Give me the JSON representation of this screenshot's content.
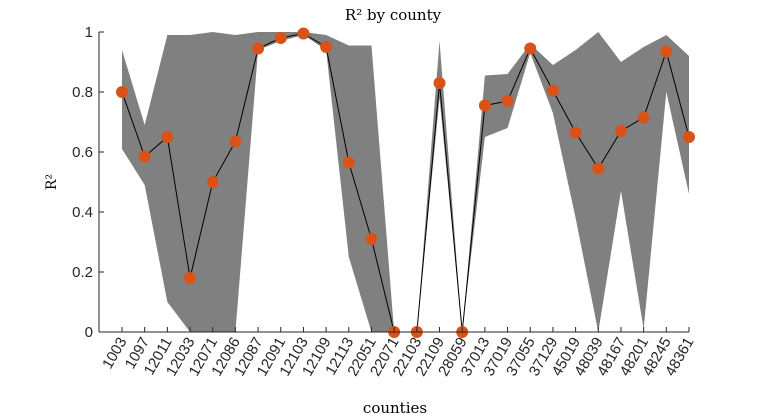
{
  "chart_data": {
    "type": "line",
    "title": "R² by county",
    "xlabel": "counties",
    "ylabel": "R²",
    "ylim": [
      0,
      1
    ],
    "yticks": [
      0,
      0.2,
      0.4,
      0.6,
      0.8,
      1
    ],
    "ytick_labels": [
      "0",
      "0.2",
      "0.4",
      "0.6",
      "0.8",
      "1"
    ],
    "grid": false,
    "legend": "none",
    "categories": [
      "1003",
      "1097",
      "12011",
      "12033",
      "12071",
      "12086",
      "12087",
      "12091",
      "12103",
      "12109",
      "12113",
      "22051",
      "22071",
      "22103",
      "22109",
      "28059",
      "37013",
      "37019",
      "37055",
      "37129",
      "45019",
      "48039",
      "48167",
      "48201",
      "48245",
      "48361"
    ],
    "series": [
      {
        "values": [
          0.8,
          0.585,
          0.65,
          0.18,
          0.5,
          0.635,
          0.945,
          0.98,
          0.995,
          0.95,
          0.565,
          0.31,
          0.0,
          0.0,
          0.83,
          0.0,
          0.755,
          0.77,
          0.945,
          0.805,
          0.665,
          0.545,
          0.67,
          0.715,
          0.935,
          0.65
        ],
        "lower": [
          0.61,
          0.49,
          0.1,
          0.0,
          0.0,
          0.0,
          0.94,
          0.97,
          0.99,
          0.94,
          0.25,
          0.0,
          0.0,
          0.0,
          0.78,
          0.0,
          0.65,
          0.68,
          0.93,
          0.73,
          0.38,
          0.0,
          0.47,
          0.01,
          0.8,
          0.46
        ],
        "upper": [
          0.94,
          0.69,
          0.99,
          0.99,
          1.0,
          0.99,
          1.0,
          1.0,
          1.0,
          0.99,
          0.955,
          0.955,
          0.0,
          0.0,
          0.97,
          0.0,
          0.855,
          0.86,
          0.96,
          0.89,
          0.94,
          1.0,
          0.9,
          0.95,
          0.99,
          0.92
        ]
      }
    ],
    "colors": {
      "band": "#808080",
      "line": "#000000",
      "marker": "#d95319",
      "axis": "#262626"
    }
  }
}
